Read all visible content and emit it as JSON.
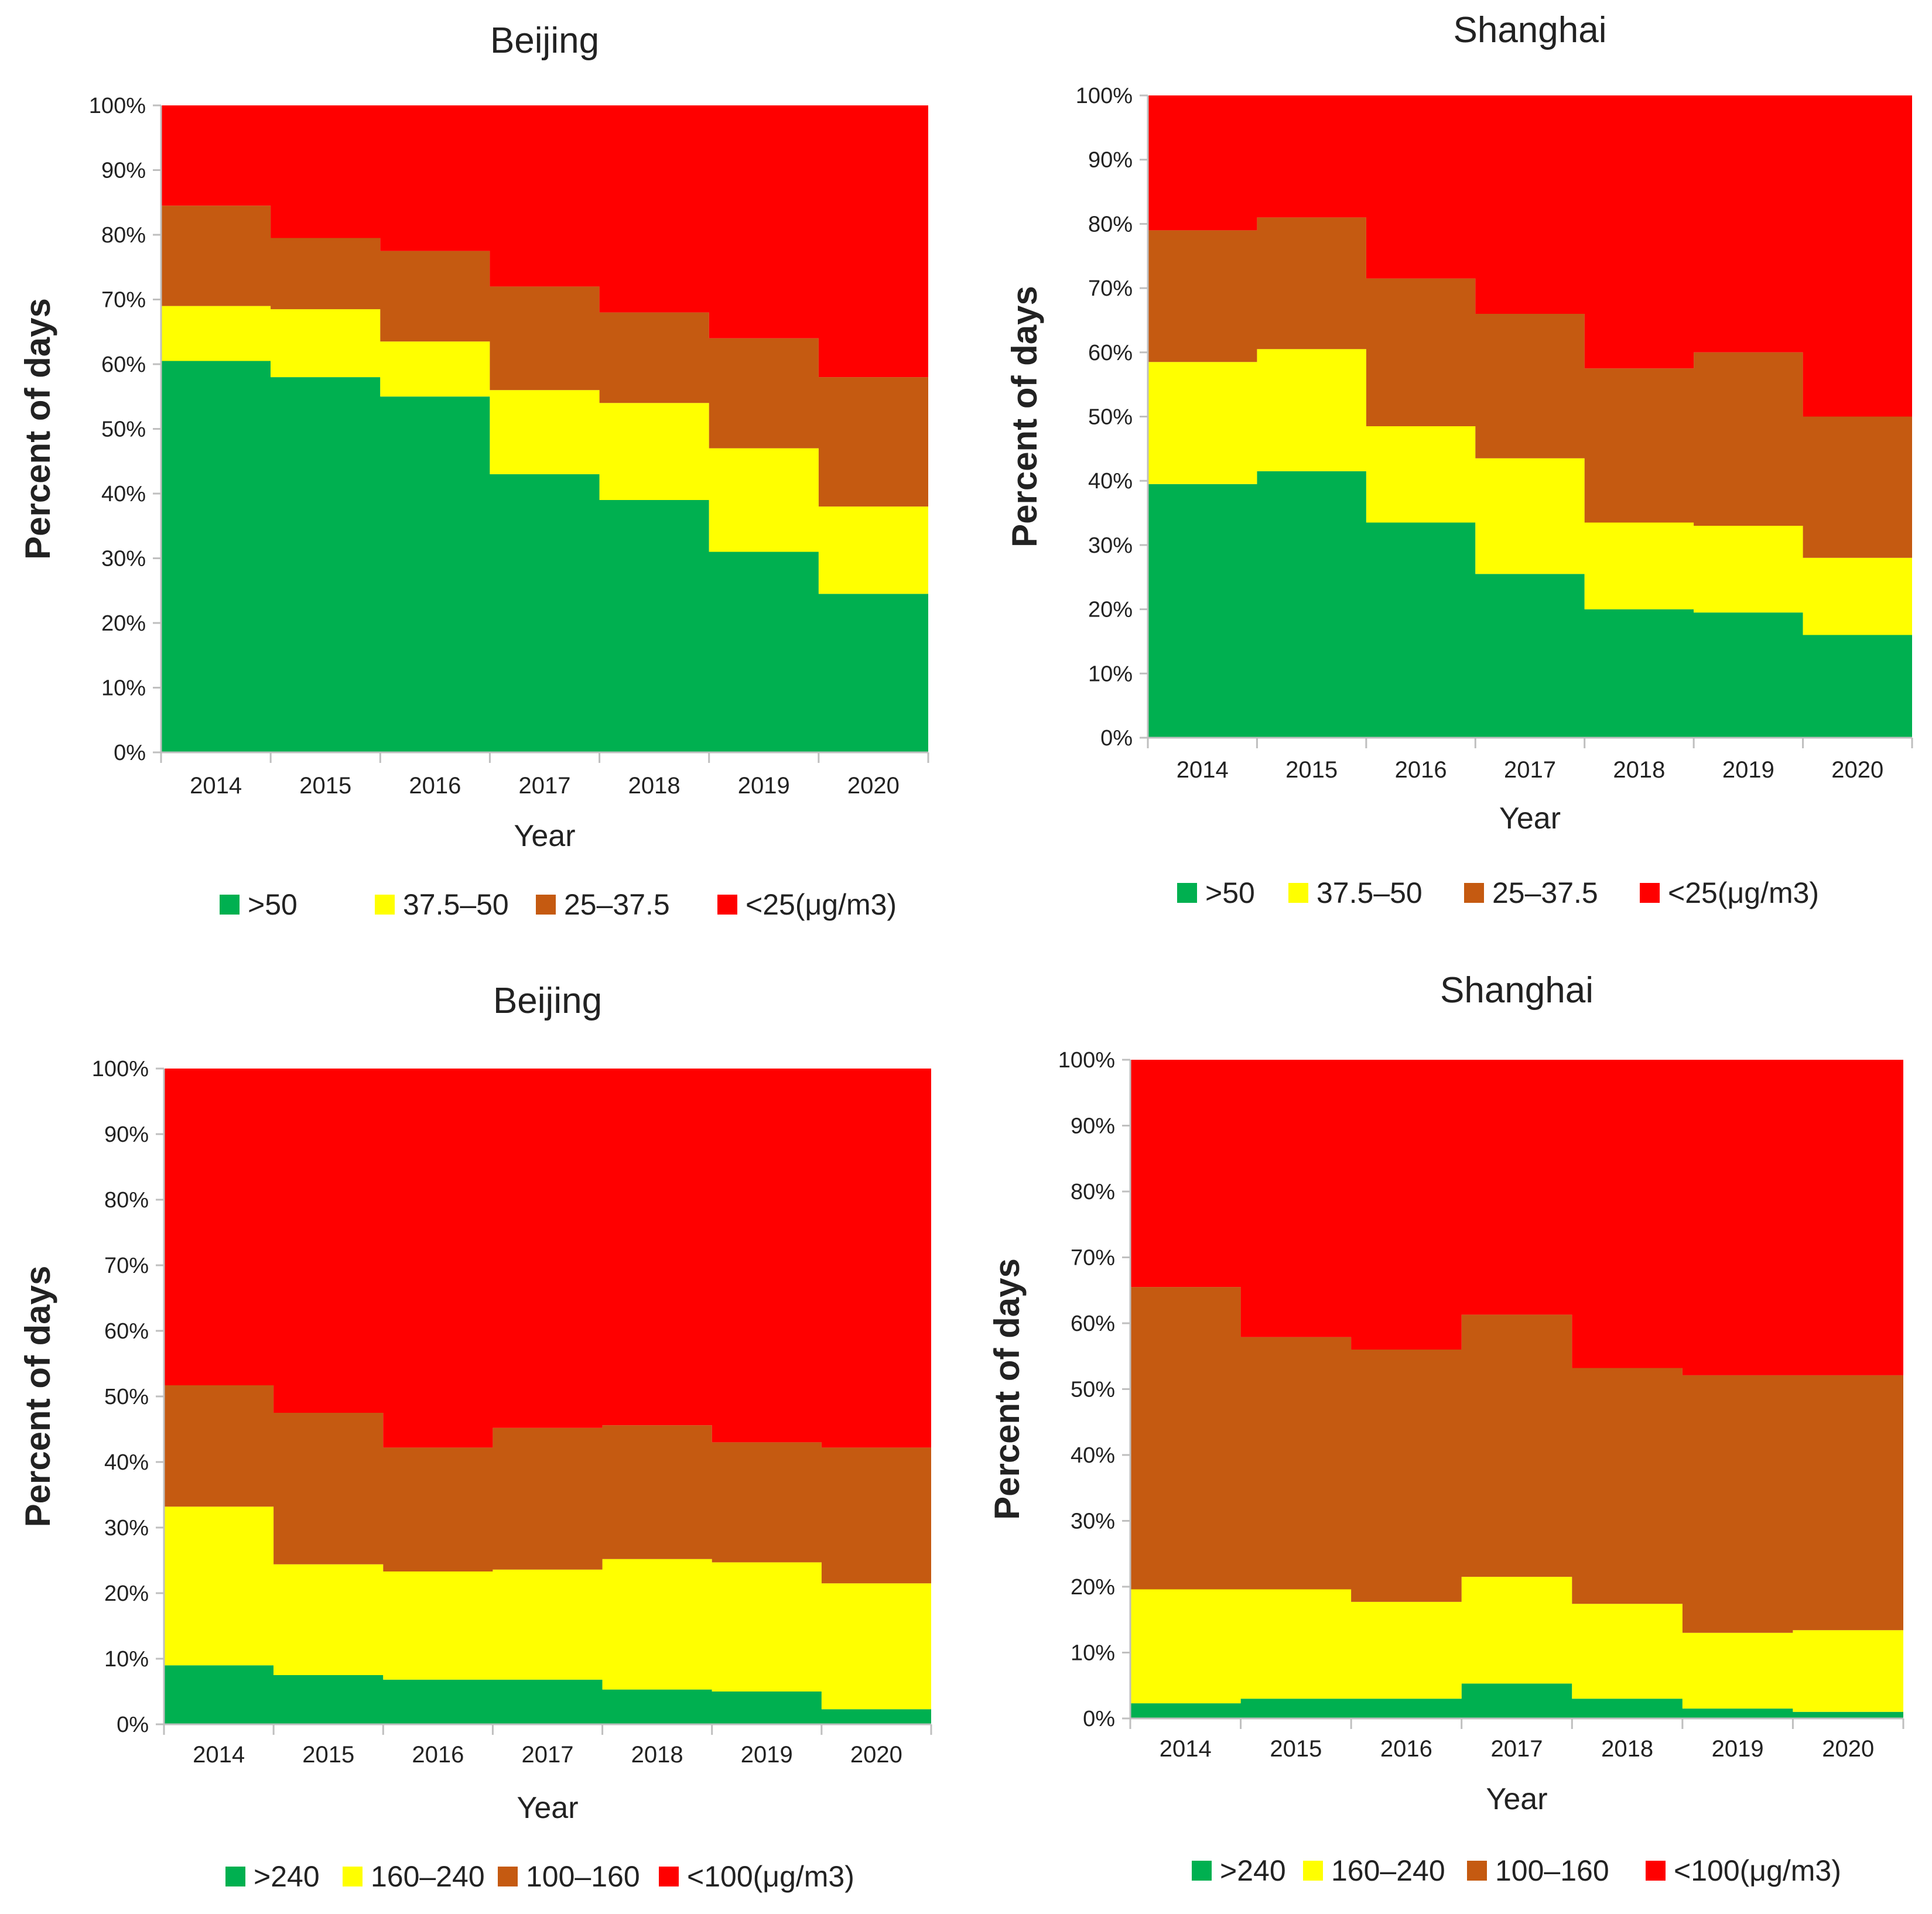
{
  "colors": {
    "green": "#00B050",
    "yellow": "#FFFF00",
    "orange": "#C55A11",
    "red": "#FF0000",
    "axis": "#BFBFBF",
    "text": "#222222"
  },
  "chart_data": [
    {
      "type": "area",
      "stacked": "100%",
      "title": "Beijing",
      "xlabel": "Year",
      "ylabel": "Percent of days",
      "ylim": [
        0,
        100
      ],
      "yticks": [
        "0%",
        "10%",
        "20%",
        "30%",
        "40%",
        "50%",
        "60%",
        "70%",
        "80%",
        "90%",
        "100%"
      ],
      "categories": [
        "2014",
        "2015",
        "2016",
        "2017",
        "2018",
        "2019",
        "2020"
      ],
      "series": [
        {
          "name": ">50",
          "color": "#00B050",
          "values": [
            60.5,
            58,
            55,
            43,
            39,
            31,
            24.5
          ]
        },
        {
          "name": "37.5–50",
          "color": "#FFFF00",
          "values": [
            8.5,
            10.5,
            8.5,
            13,
            15,
            16,
            13.5
          ]
        },
        {
          "name": "25–37.5",
          "color": "#C55A11",
          "values": [
            15.5,
            11,
            14,
            16,
            14,
            17,
            20
          ]
        },
        {
          "name": "<25(μg/m3)",
          "color": "#FF0000",
          "values": [
            15.5,
            20.5,
            22.5,
            28,
            32,
            36,
            42
          ]
        }
      ]
    },
    {
      "type": "area",
      "stacked": "100%",
      "title": "Shanghai",
      "xlabel": "Year",
      "ylabel": "Percent of days",
      "ylim": [
        0,
        100
      ],
      "yticks": [
        "0%",
        "10%",
        "20%",
        "30%",
        "40%",
        "50%",
        "60%",
        "70%",
        "80%",
        "90%",
        "100%"
      ],
      "categories": [
        "2014",
        "2015",
        "2016",
        "2017",
        "2018",
        "2019",
        "2020"
      ],
      "series": [
        {
          "name": ">50",
          "color": "#00B050",
          "values": [
            39.5,
            41.5,
            33.5,
            25.5,
            20,
            19.5,
            16
          ]
        },
        {
          "name": "37.5–50",
          "color": "#FFFF00",
          "values": [
            19,
            19,
            15,
            18,
            13.5,
            13.5,
            12
          ]
        },
        {
          "name": "25–37.5",
          "color": "#C55A11",
          "values": [
            20.5,
            20.5,
            23,
            22.5,
            24,
            27,
            22
          ]
        },
        {
          "name": "<25(μg/m3)",
          "color": "#FF0000",
          "values": [
            21,
            19,
            28.5,
            34,
            42.5,
            40,
            50
          ]
        }
      ]
    },
    {
      "type": "area",
      "stacked": "100%",
      "title": "Beijing",
      "xlabel": "Year",
      "ylabel": "Percent of days",
      "ylim": [
        0,
        100
      ],
      "yticks": [
        "0%",
        "10%",
        "20%",
        "30%",
        "40%",
        "50%",
        "60%",
        "70%",
        "80%",
        "90%",
        "100%"
      ],
      "categories": [
        "2014",
        "2015",
        "2016",
        "2017",
        "2018",
        "2019",
        "2020"
      ],
      "series": [
        {
          "name": ">240",
          "color": "#00B050",
          "values": [
            9,
            7.5,
            6.8,
            6.8,
            5.3,
            5,
            2.3
          ]
        },
        {
          "name": "160–240",
          "color": "#FFFF00",
          "values": [
            24.2,
            16.9,
            16.5,
            16.8,
            19.9,
            19.7,
            19.2
          ]
        },
        {
          "name": "100–160",
          "color": "#C55A11",
          "values": [
            18.5,
            23.1,
            18.9,
            21.6,
            20.4,
            18.3,
            20.7
          ]
        },
        {
          "name": "<100(μg/m3)",
          "color": "#FF0000",
          "values": [
            48.3,
            52.5,
            57.8,
            54.8,
            54.4,
            57,
            57.8
          ]
        }
      ]
    },
    {
      "type": "area",
      "stacked": "100%",
      "title": "Shanghai",
      "xlabel": "Year",
      "ylabel": "Percent of days",
      "ylim": [
        0,
        100
      ],
      "yticks": [
        "0%",
        "10%",
        "20%",
        "30%",
        "40%",
        "50%",
        "60%",
        "70%",
        "80%",
        "90%",
        "100%"
      ],
      "categories": [
        "2014",
        "2015",
        "2016",
        "2017",
        "2018",
        "2019",
        "2020"
      ],
      "series": [
        {
          "name": ">240",
          "color": "#00B050",
          "values": [
            2.3,
            3,
            3,
            5.3,
            3,
            1.5,
            1
          ]
        },
        {
          "name": "160–240",
          "color": "#FFFF00",
          "values": [
            17.3,
            16.6,
            14.7,
            16.2,
            14.4,
            11.5,
            12.4
          ]
        },
        {
          "name": "100–160",
          "color": "#C55A11",
          "values": [
            45.9,
            38.3,
            38.3,
            39.8,
            35.8,
            39.1,
            38.7
          ]
        },
        {
          "name": "<100(μg/m3)",
          "color": "#FF0000",
          "values": [
            34.5,
            42.1,
            44,
            38.7,
            46.8,
            47.9,
            47.9
          ]
        }
      ]
    }
  ]
}
